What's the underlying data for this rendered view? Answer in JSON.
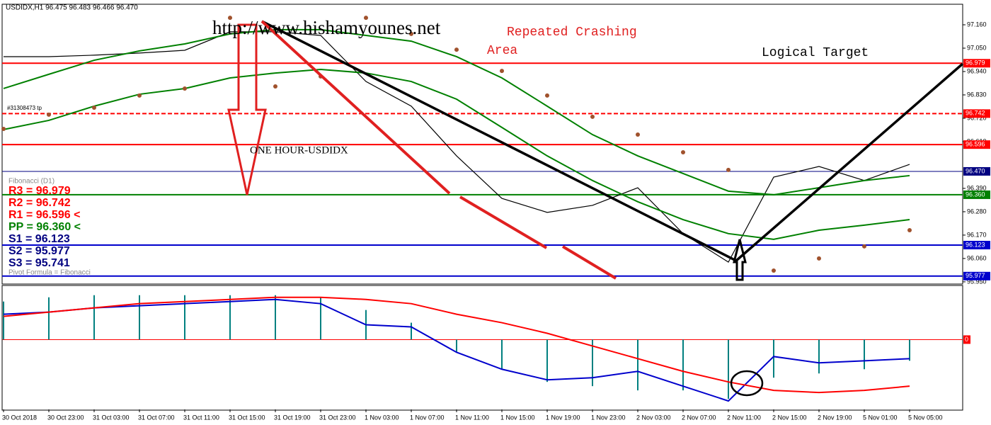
{
  "chart_data": [
    {
      "type": "line",
      "title": "USDIDX,H1  96.475 96.483 96.466 96.470",
      "ylim": [
        95.943,
        97.25
      ],
      "yticks": [
        {
          "value": 97.16,
          "label": "97.160"
        },
        {
          "value": 97.05,
          "label": "97.050"
        },
        {
          "value": 96.94,
          "label": "96.940"
        },
        {
          "value": 96.83,
          "label": "96.830"
        },
        {
          "value": 96.72,
          "label": "96.720"
        },
        {
          "value": 96.61,
          "label": "96.610"
        },
        {
          "value": 96.39,
          "label": "96.390"
        },
        {
          "value": 96.28,
          "label": "96.280"
        },
        {
          "value": 96.17,
          "label": "96.170"
        },
        {
          "value": 96.06,
          "label": "96.060"
        },
        {
          "value": 95.95,
          "label": "95.950"
        }
      ],
      "levels": [
        {
          "value": 96.979,
          "label": "96.979",
          "color": "#ff0000",
          "dash": false
        },
        {
          "value": 96.742,
          "label": "96.742",
          "color": "#ff0000",
          "dash": true
        },
        {
          "value": 96.596,
          "label": "96.596",
          "color": "#ff0000",
          "dash": false
        },
        {
          "value": 96.47,
          "label": "96.470",
          "color": "#000080",
          "dash": false
        },
        {
          "value": 96.36,
          "label": "96.360",
          "color": "#008000",
          "dash": false
        },
        {
          "value": 96.123,
          "label": "96.123",
          "color": "#0000cc",
          "dash": false
        },
        {
          "value": 95.977,
          "label": "95.977",
          "color": "#0000cc",
          "dash": false
        }
      ],
      "series": [
        {
          "color": "#000000",
          "style": "line",
          "values": [
            97.01,
            97.01,
            97.017,
            97.027,
            97.04,
            97.127,
            97.127,
            97.11,
            96.893,
            96.777,
            96.543,
            96.343,
            96.277,
            96.31,
            96.393,
            96.177,
            96.043,
            96.443,
            96.493,
            96.427,
            96.503
          ]
        },
        {
          "color": "#008000",
          "style": "line",
          "values": [
            96.86,
            96.927,
            96.993,
            97.037,
            97.07,
            97.117,
            97.137,
            97.137,
            97.11,
            97.083,
            97.01,
            96.91,
            96.777,
            96.643,
            96.543,
            96.46,
            96.377,
            96.36,
            96.393,
            96.427,
            96.45
          ]
        },
        {
          "color": "#008000",
          "style": "line",
          "values": [
            96.667,
            96.71,
            96.777,
            96.833,
            96.86,
            96.91,
            96.933,
            96.95,
            96.933,
            96.893,
            96.81,
            96.677,
            96.543,
            96.427,
            96.327,
            96.243,
            96.177,
            96.15,
            96.193,
            96.217,
            96.243
          ]
        },
        {
          "color": "#a0522d",
          "style": "dots",
          "values": [
            96.67,
            96.737,
            96.77,
            96.827,
            96.86,
            97.193,
            96.87,
            96.917,
            97.193,
            97.117,
            97.043,
            96.943,
            96.827,
            96.727,
            96.643,
            96.56,
            96.477,
            96.003,
            96.06,
            96.117,
            96.193
          ]
        }
      ],
      "annotations": {
        "site": "http://www.hishamyounes.net",
        "crash1": "Repeated Crashing",
        "crash2": "Area",
        "target": "Logical Target",
        "frame": "ONE HOUR-USDIDX",
        "tp": "#31308473 tp"
      },
      "pivot_legend": {
        "title": "Fibonacci (D1)",
        "footer": "Pivot Formula = Fibonacci",
        "lines": [
          {
            "text": "R3 = 96.979",
            "color": "#ff0000"
          },
          {
            "text": "R2 = 96.742",
            "color": "#ff0000"
          },
          {
            "text": "R1 = 96.596 <",
            "color": "#ff0000"
          },
          {
            "text": "PP = 96.360 <",
            "color": "#008000"
          },
          {
            "text": "S1 = 96.123",
            "color": "#000080"
          },
          {
            "text": "S2 = 95.977",
            "color": "#000080"
          },
          {
            "text": "S3 = 95.741",
            "color": "#000080"
          }
        ]
      }
    },
    {
      "type": "oscillator",
      "categories": [
        "30 Oct 2018",
        "30 Oct 23:00",
        "31 Oct 03:00",
        "31 Oct 07:00",
        "31 Oct 11:00",
        "31 Oct 15:00",
        "31 Oct 19:00",
        "31 Oct 23:00",
        "1 Nov 03:00",
        "1 Nov 07:00",
        "1 Nov 11:00",
        "1 Nov 15:00",
        "1 Nov 19:00",
        "1 Nov 23:00",
        "2 Nov 03:00",
        "2 Nov 07:00",
        "2 Nov 11:00",
        "2 Nov 15:00",
        "2 Nov 19:00",
        "5 Nov 01:00",
        "5 Nov 05:00"
      ],
      "ylim": [
        -1.65,
        1.28
      ],
      "yticks": [
        0
      ],
      "zero_color": "#ff0000",
      "series": [
        {
          "color": "#008080",
          "style": "bars",
          "values": [
            0.9,
            1.0,
            1.05,
            1.05,
            1.05,
            1.05,
            1.05,
            1.0,
            0.7,
            0.4,
            -0.3,
            -0.7,
            -1.0,
            -1.1,
            -1.2,
            -1.2,
            -1.4,
            -0.9,
            -0.8,
            -0.7,
            -0.5
          ]
        },
        {
          "color": "#0000cc",
          "style": "line",
          "values": [
            0.6,
            0.65,
            0.75,
            0.8,
            0.85,
            0.9,
            0.95,
            0.85,
            0.35,
            0.3,
            -0.3,
            -0.7,
            -0.95,
            -0.9,
            -0.75,
            -1.1,
            -1.45,
            -0.4,
            -0.55,
            -0.5,
            -0.45
          ]
        },
        {
          "color": "#ff0000",
          "style": "line",
          "values": [
            0.55,
            0.65,
            0.75,
            0.85,
            0.9,
            0.95,
            1.0,
            1.0,
            0.95,
            0.85,
            0.6,
            0.4,
            0.15,
            -0.15,
            -0.45,
            -0.75,
            -1.0,
            -1.2,
            -1.25,
            -1.2,
            -1.1
          ]
        }
      ]
    }
  ]
}
